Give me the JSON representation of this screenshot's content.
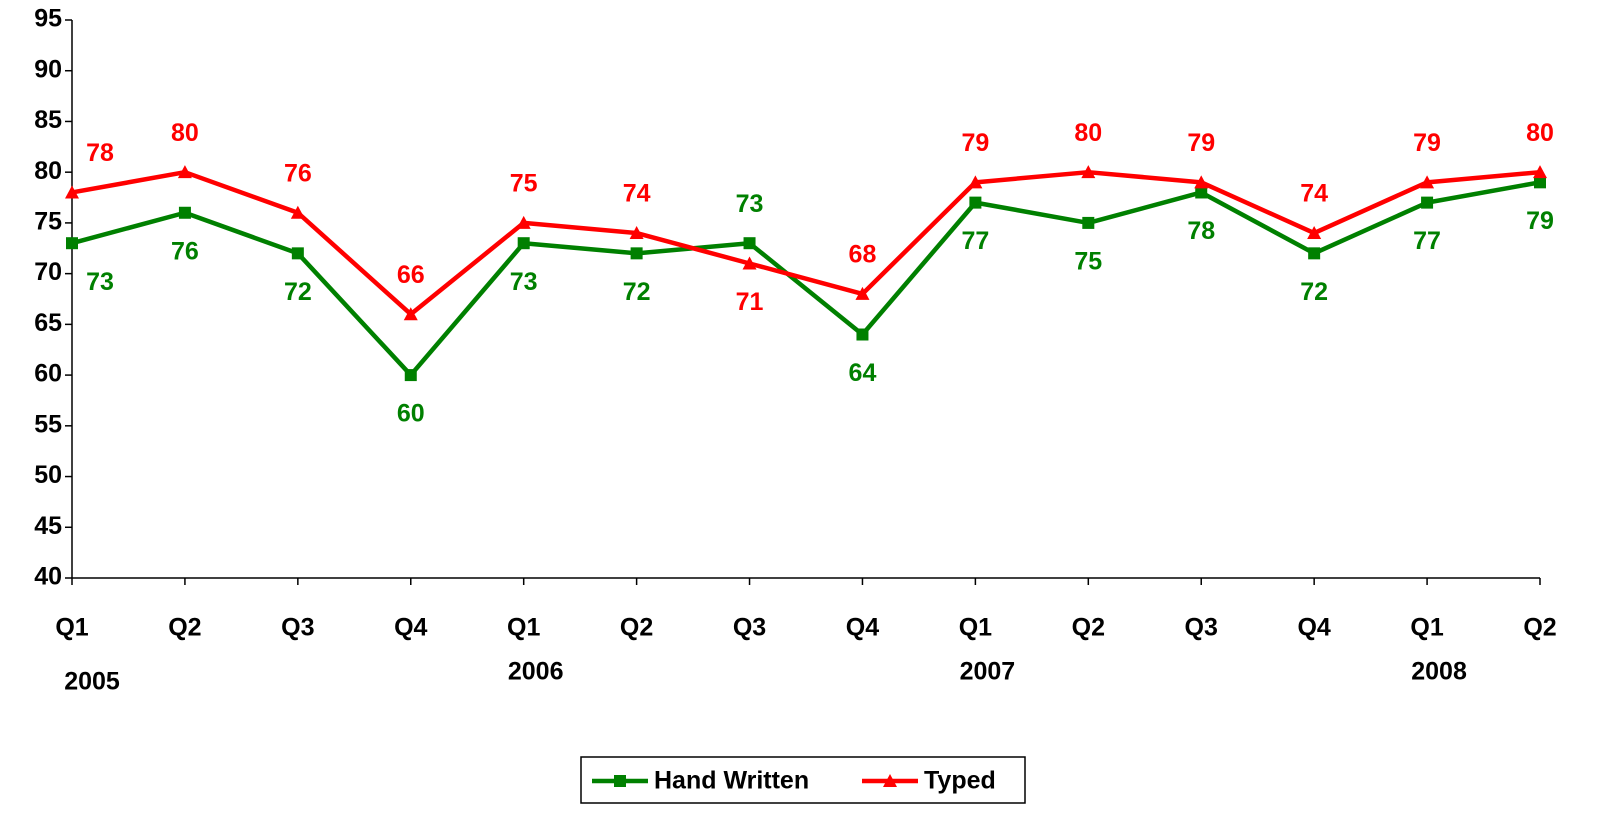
{
  "chart_data": {
    "type": "line",
    "categories": [
      "Q1",
      "Q2",
      "Q3",
      "Q4",
      "Q1",
      "Q2",
      "Q3",
      "Q4",
      "Q1",
      "Q2",
      "Q3",
      "Q4",
      "Q1",
      "Q2"
    ],
    "year_categories": [
      "2005",
      null,
      null,
      null,
      "2006",
      null,
      null,
      null,
      "2007",
      null,
      null,
      null,
      "2008",
      null
    ],
    "series": [
      {
        "name": "Hand Written",
        "color": "#008000",
        "marker": "square",
        "values": [
          73,
          76,
          72,
          60,
          73,
          72,
          73,
          64,
          77,
          75,
          78,
          72,
          77,
          79
        ]
      },
      {
        "name": "Typed",
        "color": "#ff0000",
        "marker": "triangle",
        "values": [
          78,
          80,
          76,
          66,
          75,
          74,
          71,
          68,
          79,
          80,
          79,
          74,
          79,
          80
        ]
      }
    ],
    "ylim": [
      40,
      95
    ],
    "yticks": [
      40,
      45,
      50,
      55,
      60,
      65,
      70,
      75,
      80,
      85,
      90,
      95
    ],
    "grid": false,
    "legend": "bottom"
  }
}
